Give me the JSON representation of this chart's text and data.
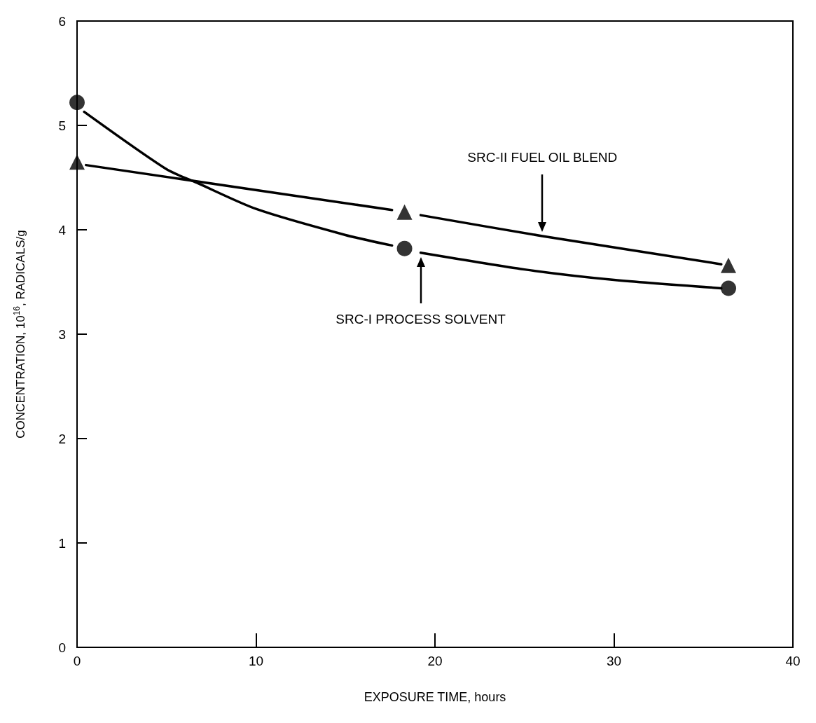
{
  "chart_data": {
    "type": "scatter",
    "xlabel": "EXPOSURE TIME, hours",
    "ylabel": "CONCENTRATION, 10$^{16}$, RADICALS/g",
    "xlim": [
      0,
      40
    ],
    "xticks": [
      0,
      10,
      20,
      30,
      40
    ],
    "ylim": [
      0,
      6
    ],
    "yticks": [
      0,
      1,
      2,
      3,
      4,
      5,
      6
    ],
    "grid": false,
    "series": [
      {
        "marker": "circle",
        "color": "#000000",
        "x": [
          0,
          18.3,
          36.4
        ],
        "values": [
          5.22,
          3.82,
          3.44
        ]
      },
      {
        "marker": "triangle",
        "color": "#000000",
        "x": [
          0,
          18.3,
          36.4
        ],
        "values": [
          4.65,
          4.17,
          3.66
        ]
      },
      {
        "type": "line",
        "name": "SRC-I PROCESS SOLVENT",
        "color": "#000000",
        "line_style": "solid",
        "x": [
          0.4,
          5,
          6.7,
          10,
          15,
          17.6,
          18.3,
          19.2,
          25,
          30,
          36
        ],
        "values": [
          5.13,
          4.58,
          4.45,
          4.2,
          3.95,
          3.85,
          null,
          3.78,
          3.62,
          3.52,
          3.44
        ]
      },
      {
        "type": "line",
        "name": "SRC-II FUEL OIL BLEND",
        "color": "#000000",
        "line_style": "solid",
        "x": [
          0.5,
          17.6,
          18.3,
          19.2,
          26,
          36
        ],
        "values": [
          4.62,
          4.19,
          null,
          4.14,
          3.94,
          3.67
        ]
      }
    ]
  }
}
